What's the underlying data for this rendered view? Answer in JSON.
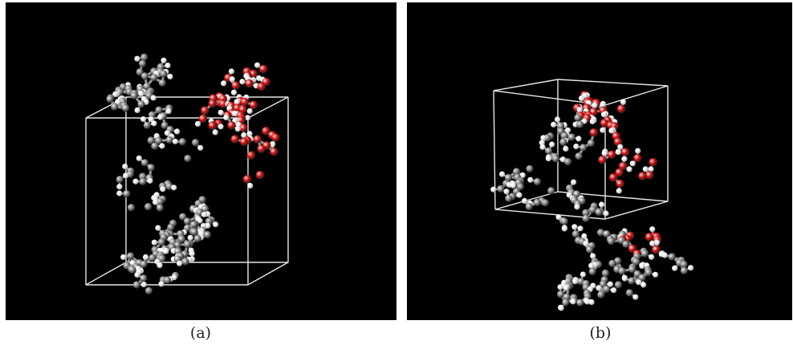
{
  "figure": {
    "panels": [
      {
        "id": "a",
        "caption": "(a)",
        "seed": 11,
        "atoms_gray": 120,
        "atoms_white": 140,
        "atoms_red": 46
      },
      {
        "id": "b",
        "caption": "(b)",
        "seed": 29,
        "atoms_gray": 110,
        "atoms_white": 130,
        "atoms_red": 42
      }
    ],
    "colors": {
      "background": "#000000",
      "box": "#e6e6e6",
      "carbon": "#8a8a8a",
      "hydrogen": "#f2f2f2",
      "oxygen": "#e01010",
      "bond": "#9a9a9a"
    }
  }
}
